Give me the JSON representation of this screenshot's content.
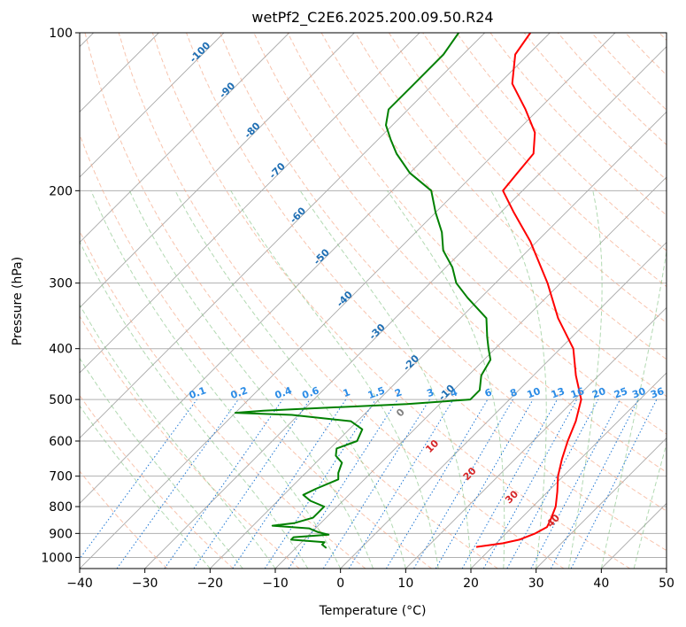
{
  "chart_data": {
    "type": "line",
    "title": "wetPf2_C2E6.2025.200.09.50.R24",
    "xlabel": "Temperature (°C)",
    "ylabel": "Pressure (hPa)",
    "xlim": [
      -40,
      50
    ],
    "ylim": [
      1050,
      100
    ],
    "y_scale": "log",
    "x_ticks": [
      -40,
      -30,
      -20,
      -10,
      0,
      10,
      20,
      30,
      40,
      50
    ],
    "x_tick_labels": [
      "−40",
      "−30",
      "−20",
      "−10",
      "0",
      "10",
      "20",
      "30",
      "40",
      "50"
    ],
    "y_ticks": [
      100,
      200,
      300,
      400,
      500,
      600,
      700,
      800,
      900,
      1000
    ],
    "y_tick_labels": [
      "100",
      "200",
      "300",
      "400",
      "500",
      "600",
      "700",
      "800",
      "900",
      "1000"
    ],
    "grid": true,
    "isotherm_labels": [
      {
        "value": -100,
        "text": "-100"
      },
      {
        "value": -90,
        "text": "-90"
      },
      {
        "value": -80,
        "text": "-80"
      },
      {
        "value": -70,
        "text": "-70"
      },
      {
        "value": -60,
        "text": "-60"
      },
      {
        "value": -50,
        "text": "-50"
      },
      {
        "value": -40,
        "text": "-40"
      },
      {
        "value": -30,
        "text": "-30"
      },
      {
        "value": -20,
        "text": "-20"
      },
      {
        "value": -10,
        "text": "-10"
      }
    ],
    "mixing_ratio_labels": [
      "0.1",
      "0.2",
      "0.4",
      "0.6",
      "1",
      "1.5",
      "2",
      "3",
      "4",
      "6",
      "8",
      "10",
      "13",
      "16",
      "20",
      "25",
      "30",
      "36"
    ],
    "warm_isotherm_labels": [
      {
        "value": 0,
        "text": "0",
        "color": "#7f7f7f"
      },
      {
        "value": 10,
        "text": "10",
        "color": "#d62728"
      },
      {
        "value": 20,
        "text": "20",
        "color": "#d62728"
      },
      {
        "value": 30,
        "text": "30",
        "color": "#d62728"
      },
      {
        "value": 40,
        "text": "40",
        "color": "#d62728"
      }
    ],
    "series": [
      {
        "color": "#ff0000",
        "points": [
          [
            955,
            17.5
          ],
          [
            940,
            21
          ],
          [
            925,
            23
          ],
          [
            900,
            24.5
          ],
          [
            875,
            25.3
          ],
          [
            850,
            24.8
          ],
          [
            800,
            23.5
          ],
          [
            750,
            21.5
          ],
          [
            700,
            19.2
          ],
          [
            650,
            17.2
          ],
          [
            600,
            15.3
          ],
          [
            550,
            13.5
          ],
          [
            500,
            11
          ],
          [
            450,
            6.5
          ],
          [
            400,
            2
          ],
          [
            350,
            -5
          ],
          [
            300,
            -12
          ],
          [
            250,
            -21
          ],
          [
            220,
            -28
          ],
          [
            200,
            -33
          ],
          [
            185,
            -33.5
          ],
          [
            170,
            -34
          ],
          [
            155,
            -37
          ],
          [
            140,
            -42
          ],
          [
            125,
            -48
          ],
          [
            110,
            -52
          ],
          [
            100,
            -53
          ]
        ]
      },
      {
        "color": "#008000",
        "points": [
          [
            960,
            -5.3
          ],
          [
            945,
            -6.5
          ],
          [
            935,
            -6.5
          ],
          [
            925,
            -12
          ],
          [
            915,
            -12
          ],
          [
            905,
            -7
          ],
          [
            895,
            -9
          ],
          [
            880,
            -11
          ],
          [
            870,
            -17
          ],
          [
            860,
            -14
          ],
          [
            840,
            -12
          ],
          [
            820,
            -12
          ],
          [
            800,
            -12
          ],
          [
            780,
            -15
          ],
          [
            760,
            -17
          ],
          [
            740,
            -16
          ],
          [
            710,
            -14
          ],
          [
            690,
            -15
          ],
          [
            660,
            -16
          ],
          [
            640,
            -18
          ],
          [
            620,
            -19
          ],
          [
            600,
            -17
          ],
          [
            570,
            -18
          ],
          [
            550,
            -21
          ],
          [
            535,
            -31
          ],
          [
            530,
            -40
          ],
          [
            525,
            -36
          ],
          [
            510,
            -15
          ],
          [
            500,
            -6
          ],
          [
            480,
            -6
          ],
          [
            450,
            -8
          ],
          [
            420,
            -9
          ],
          [
            400,
            -11
          ],
          [
            380,
            -13
          ],
          [
            350,
            -16
          ],
          [
            320,
            -22
          ],
          [
            300,
            -26
          ],
          [
            280,
            -29
          ],
          [
            260,
            -33
          ],
          [
            240,
            -36
          ],
          [
            220,
            -40
          ],
          [
            200,
            -44
          ],
          [
            185,
            -50
          ],
          [
            170,
            -55
          ],
          [
            160,
            -58
          ],
          [
            150,
            -61
          ],
          [
            140,
            -63
          ],
          [
            125,
            -63
          ],
          [
            110,
            -63
          ],
          [
            100,
            -64
          ]
        ]
      }
    ]
  }
}
